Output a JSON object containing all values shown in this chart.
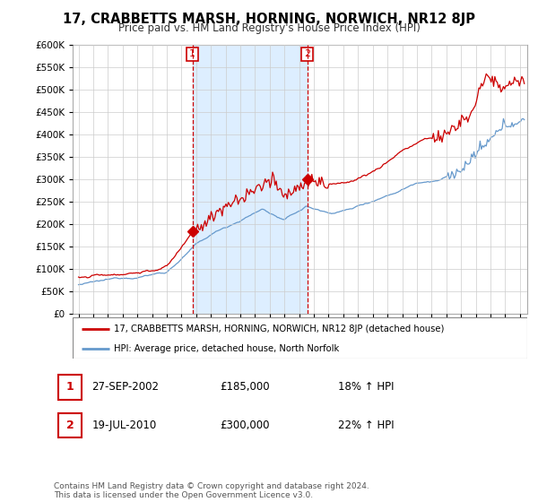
{
  "title": "17, CRABBETTS MARSH, HORNING, NORWICH, NR12 8JP",
  "subtitle": "Price paid vs. HM Land Registry's House Price Index (HPI)",
  "ylim": [
    0,
    600000
  ],
  "yticks": [
    0,
    50000,
    100000,
    150000,
    200000,
    250000,
    300000,
    350000,
    400000,
    450000,
    500000,
    550000,
    600000
  ],
  "sale1_x": 2002.74,
  "sale1_y": 185000,
  "sale2_x": 2010.54,
  "sale2_y": 300000,
  "legend_line1": "17, CRABBETTS MARSH, HORNING, NORWICH, NR12 8JP (detached house)",
  "legend_line2": "HPI: Average price, detached house, North Norfolk",
  "annot1_date": "27-SEP-2002",
  "annot1_price": "£185,000",
  "annot1_hpi": "18% ↑ HPI",
  "annot2_date": "19-JUL-2010",
  "annot2_price": "£300,000",
  "annot2_hpi": "22% ↑ HPI",
  "footer": "Contains HM Land Registry data © Crown copyright and database right 2024.\nThis data is licensed under the Open Government Licence v3.0.",
  "red_color": "#cc0000",
  "blue_color": "#6699cc",
  "shade_color": "#ddeeff",
  "grid_color": "#cccccc",
  "box_color": "#cc0000",
  "xlim_left": 1994.6,
  "xlim_right": 2025.5
}
